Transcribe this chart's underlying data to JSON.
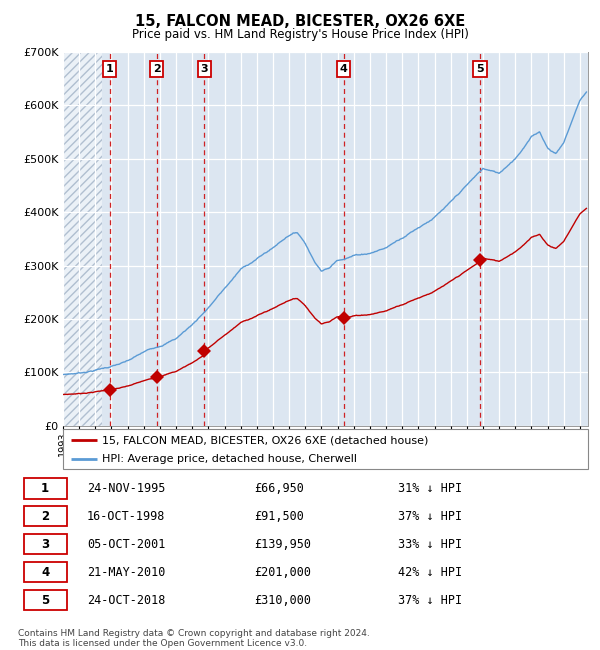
{
  "title": "15, FALCON MEAD, BICESTER, OX26 6XE",
  "subtitle": "Price paid vs. HM Land Registry's House Price Index (HPI)",
  "ylim": [
    0,
    700000
  ],
  "yticks": [
    0,
    100000,
    200000,
    300000,
    400000,
    500000,
    600000,
    700000
  ],
  "ytick_labels": [
    "£0",
    "£100K",
    "£200K",
    "£300K",
    "£400K",
    "£500K",
    "£600K",
    "£700K"
  ],
  "xlim_start": 1993.0,
  "xlim_end": 2025.5,
  "hpi_color": "#5b9bd5",
  "price_color": "#c00000",
  "vline_color": "#cc0000",
  "bg_color": "#dce6f1",
  "grid_color": "#ffffff",
  "hatch_end": 1995.4,
  "purchases": [
    {
      "date_x": 1995.9,
      "price": 66950,
      "label": "1"
    },
    {
      "date_x": 1998.79,
      "price": 91500,
      "label": "2"
    },
    {
      "date_x": 2001.75,
      "price": 139950,
      "label": "3"
    },
    {
      "date_x": 2010.38,
      "price": 201000,
      "label": "4"
    },
    {
      "date_x": 2018.81,
      "price": 310000,
      "label": "5"
    }
  ],
  "hpi_key_x": [
    1993,
    1994,
    1995,
    1996,
    1997,
    1998,
    1999,
    2000,
    2001,
    2002,
    2003,
    2004,
    2005,
    2006,
    2007,
    2007.5,
    2008,
    2008.5,
    2009,
    2009.5,
    2010,
    2011,
    2012,
    2013,
    2014,
    2015,
    2016,
    2017,
    2018,
    2019,
    2020,
    2021,
    2022,
    2022.5,
    2023,
    2023.5,
    2024,
    2024.5,
    2025,
    2025.4
  ],
  "hpi_key_y": [
    96000,
    99000,
    105000,
    112000,
    120000,
    135000,
    148000,
    162000,
    188000,
    220000,
    255000,
    290000,
    310000,
    330000,
    355000,
    360000,
    340000,
    310000,
    290000,
    295000,
    310000,
    320000,
    325000,
    335000,
    355000,
    375000,
    395000,
    420000,
    450000,
    480000,
    470000,
    500000,
    540000,
    550000,
    520000,
    510000,
    530000,
    570000,
    610000,
    625000
  ],
  "legend_entries": [
    "15, FALCON MEAD, BICESTER, OX26 6XE (detached house)",
    "HPI: Average price, detached house, Cherwell"
  ],
  "table_rows": [
    {
      "num": "1",
      "date": "24-NOV-1995",
      "price": "£66,950",
      "hpi": "31% ↓ HPI"
    },
    {
      "num": "2",
      "date": "16-OCT-1998",
      "price": "£91,500",
      "hpi": "37% ↓ HPI"
    },
    {
      "num": "3",
      "date": "05-OCT-2001",
      "price": "£139,950",
      "hpi": "33% ↓ HPI"
    },
    {
      "num": "4",
      "date": "21-MAY-2010",
      "price": "£201,000",
      "hpi": "42% ↓ HPI"
    },
    {
      "num": "5",
      "date": "24-OCT-2018",
      "price": "£310,000",
      "hpi": "37% ↓ HPI"
    }
  ],
  "footnote": "Contains HM Land Registry data © Crown copyright and database right 2024.\nThis data is licensed under the Open Government Licence v3.0."
}
